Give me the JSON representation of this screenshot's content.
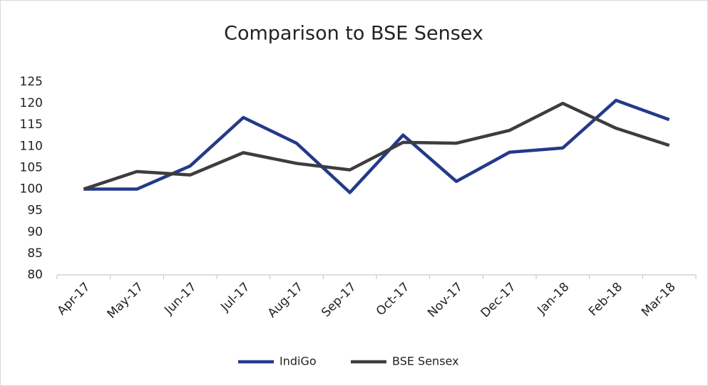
{
  "chart_data": {
    "type": "line",
    "title": "Comparison to BSE Sensex",
    "categories": [
      "Apr-17",
      "May-17",
      "Jun-17",
      "Jul-17",
      "Aug-17",
      "Sep-17",
      "Oct-17",
      "Nov-17",
      "Dec-17",
      "Jan-18",
      "Feb-18",
      "Mar-18"
    ],
    "series": [
      {
        "name": "IndiGo",
        "color": "#233a8a",
        "values": [
          100,
          100,
          105.4,
          116.7,
          110.7,
          99.2,
          112.6,
          101.8,
          108.6,
          109.6,
          120.7,
          116.2
        ]
      },
      {
        "name": "BSE Sensex",
        "color": "#3d3d3d",
        "values": [
          100,
          104.1,
          103.3,
          108.5,
          106,
          104.5,
          110.9,
          110.7,
          113.7,
          120,
          114.2,
          110.2
        ]
      }
    ],
    "ylim": [
      80,
      125
    ],
    "yticks": [
      80,
      85,
      90,
      95,
      100,
      105,
      110,
      115,
      120,
      125
    ],
    "grid": false,
    "legend": "bottom"
  }
}
